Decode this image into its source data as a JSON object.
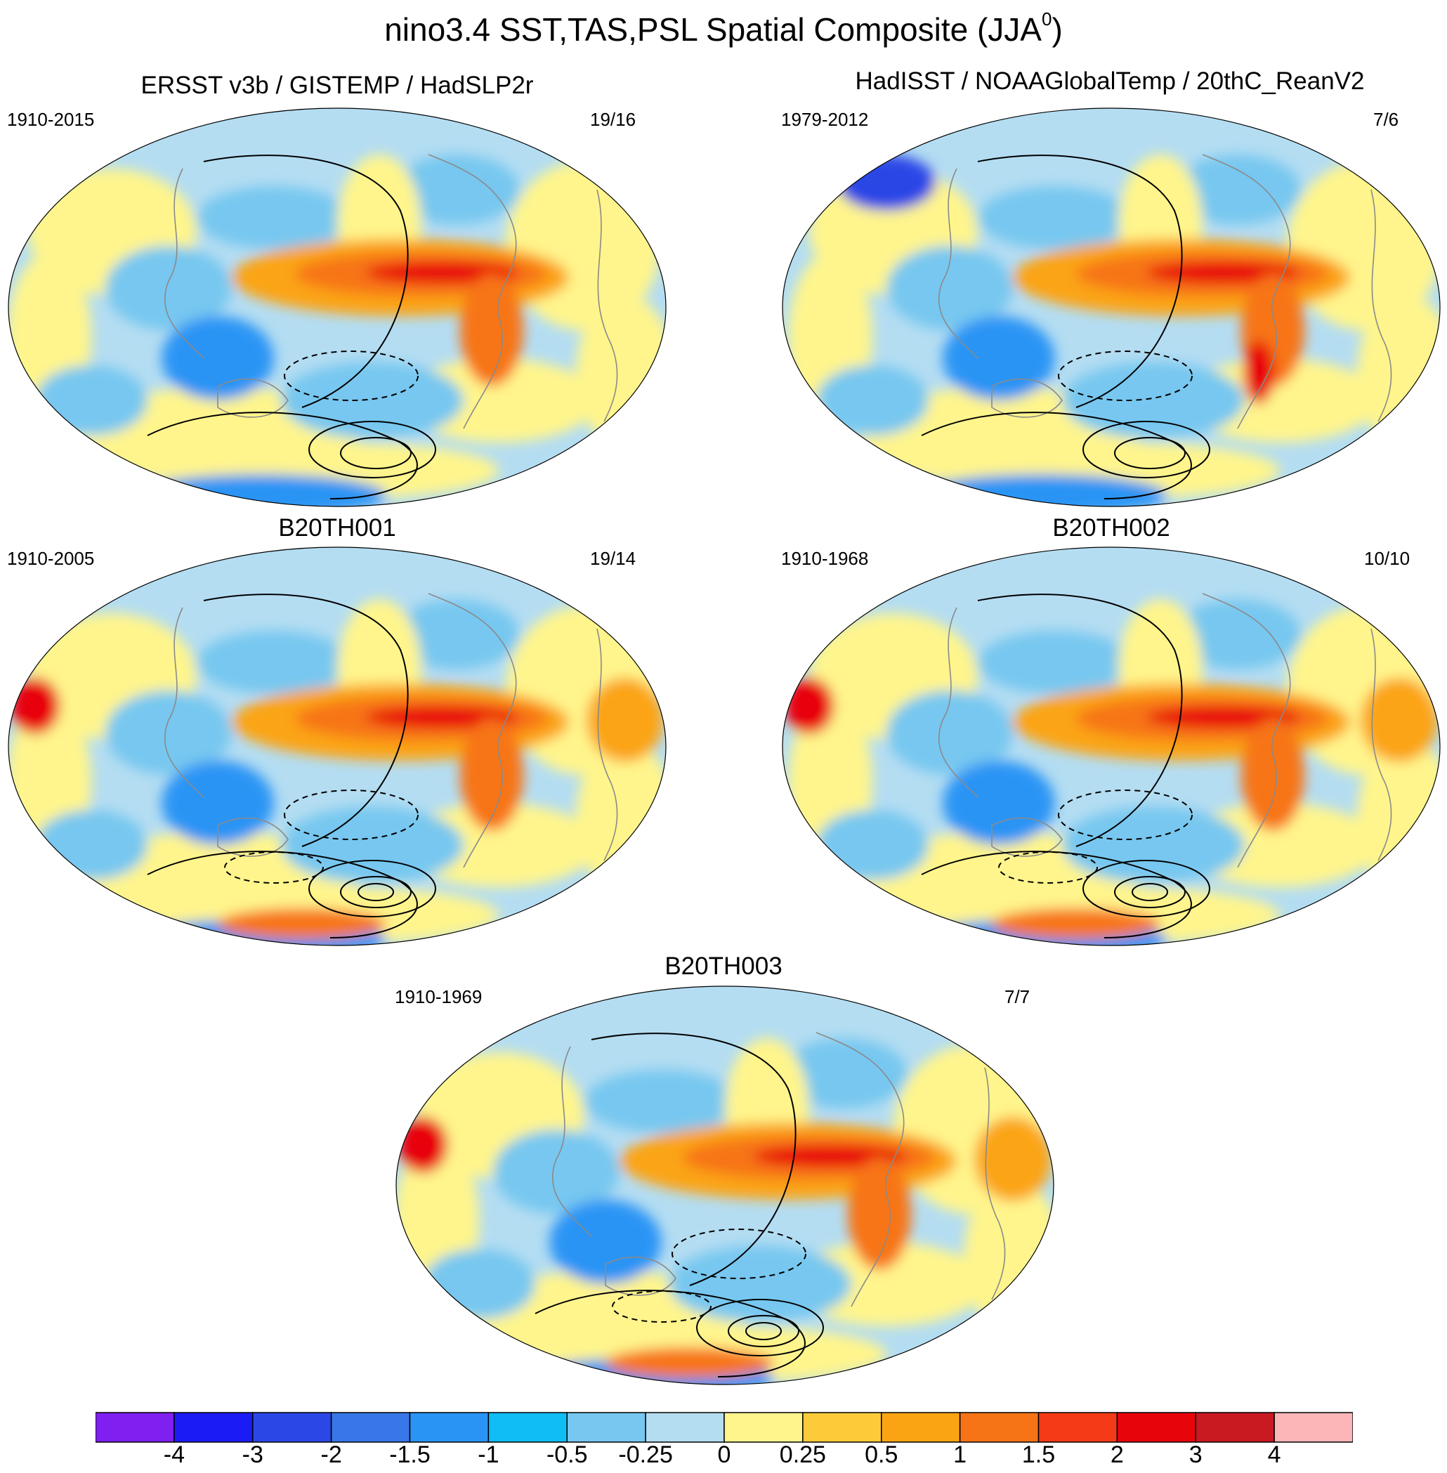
{
  "title": "nino3.4 SST,TAS,PSL Spatial Composite (JJA",
  "title_superscript": "0",
  "title_close": ")",
  "panels": [
    {
      "title": "ERSST v3b / GISTEMP / HadSLP2r",
      "years": "1910-2015",
      "count": "19/16"
    },
    {
      "title": "HadISST / NOAAGlobalTemp / 20thC_ReanV2",
      "years": "1979-2012",
      "count": "7/6"
    },
    {
      "title": "B20TH001",
      "years": "1910-2005",
      "count": "19/14"
    },
    {
      "title": "B20TH002",
      "years": "1910-1968",
      "count": "10/10"
    },
    {
      "title": "B20TH003",
      "years": "1910-1969",
      "count": "7/7"
    }
  ],
  "colorbar": {
    "labels": [
      "-4",
      "-3",
      "-2",
      "-1.5",
      "-1",
      "-0.5",
      "-0.25",
      "0",
      "0.25",
      "0.5",
      "1",
      "1.5",
      "2",
      "3",
      "4"
    ],
    "colors": [
      "#7f1ff0",
      "#1b1bf5",
      "#2b47e6",
      "#3877e8",
      "#2a94f5",
      "#10bdf5",
      "#77c7f0",
      "#b4ddf2",
      "#fff58c",
      "#fdcb3a",
      "#fba413",
      "#f77416",
      "#f43a17",
      "#e8040b",
      "#c81a20",
      "#fdb6b8"
    ]
  },
  "map_colors": {
    "ocean_neutral": "#b4ddf2",
    "warm_weak": "#fff58c",
    "warm_mid": "#fba413",
    "warm_strong": "#f77416",
    "warm_peak": "#e8040b",
    "cool_mid": "#77c7f0",
    "cool_strong": "#2a94f5",
    "cool_deep": "#2b47e6",
    "coast": "#8a8a8a",
    "contour": "#000000"
  }
}
